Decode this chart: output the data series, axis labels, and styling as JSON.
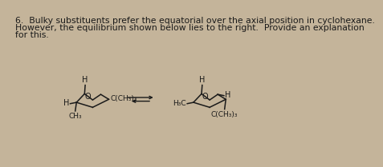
{
  "bg_color": "#c4b49a",
  "text_color": "#1a1a1a",
  "line1": "6.  Bulky substituents prefer the equatorial over the axial position in cyclohexane.",
  "line2": "However, the equilibrium shown below lies to the right.  Provide an explanation",
  "line3": "for this.",
  "fs_text": 7.8,
  "fs_chem": 7.0,
  "fs_label": 6.5,
  "lw": 1.1
}
